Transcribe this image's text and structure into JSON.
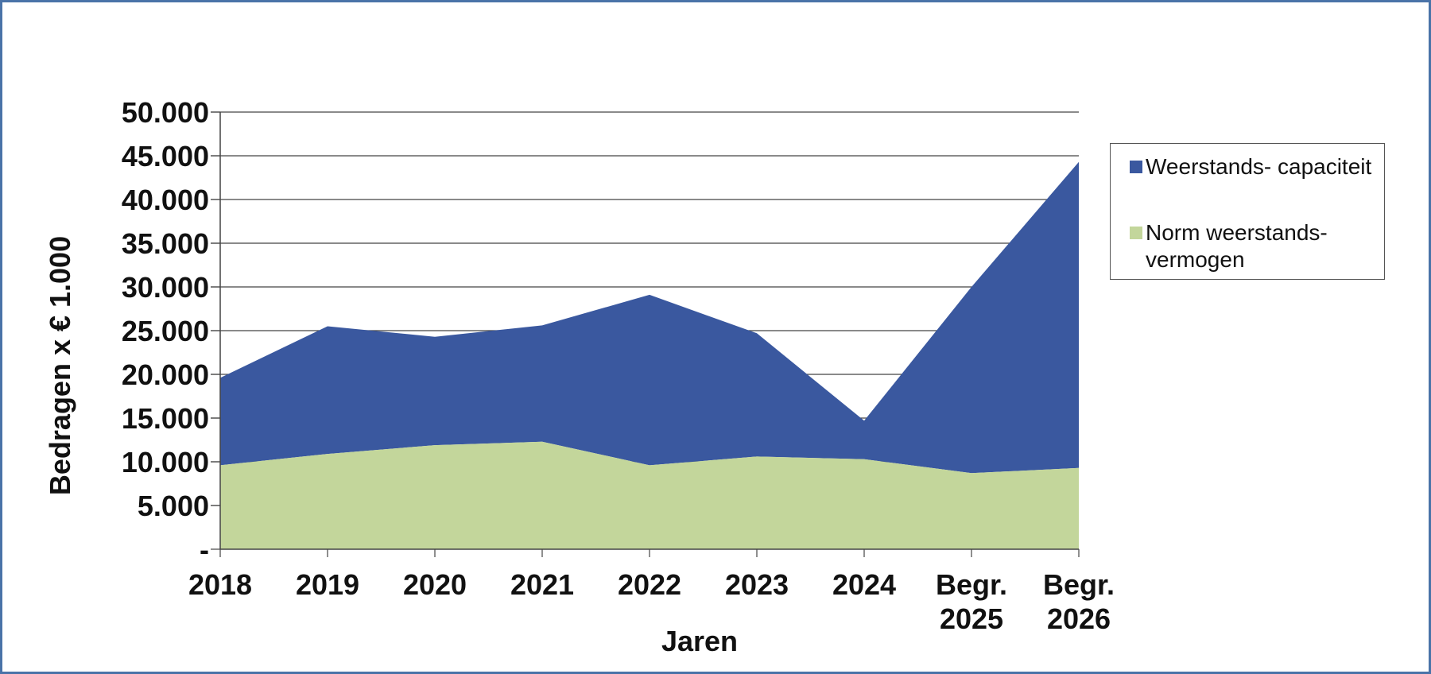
{
  "chart_data": {
    "type": "area",
    "stacked": true,
    "categories": [
      "2018",
      "2019",
      "2020",
      "2021",
      "2022",
      "2023",
      "2024",
      "Begr.\n2025",
      "Begr.\n2026"
    ],
    "series": [
      {
        "name": "Norm weerstands-\nvermogen",
        "color": "#c3d69b",
        "values": [
          9600,
          10900,
          11900,
          12300,
          9600,
          10600,
          10300,
          8700,
          9300
        ]
      },
      {
        "name": "Weerstands- capaciteit",
        "color": "#3a589f",
        "total_values": [
          19600,
          25500,
          24300,
          25600,
          29100,
          24700,
          14700,
          30000,
          44300
        ]
      }
    ],
    "ylim": [
      0,
      50000
    ],
    "yticks": [
      0,
      5000,
      10000,
      15000,
      20000,
      25000,
      30000,
      35000,
      40000,
      45000,
      50000
    ],
    "ytick_labels": [
      "-",
      "5.000",
      "10.000",
      "15.000",
      "20.000",
      "25.000",
      "30.000",
      "35.000",
      "40.000",
      "45.000",
      "50.000"
    ],
    "xlabel": "Jaren",
    "ylabel": "Bedragen x € 1.000",
    "grid": true,
    "legend_position": "right"
  },
  "legend": {
    "capaciteit_label": "Weerstands- capaciteit",
    "norm_label_line1": "Norm weerstands-",
    "norm_label_line2": "vermogen"
  }
}
